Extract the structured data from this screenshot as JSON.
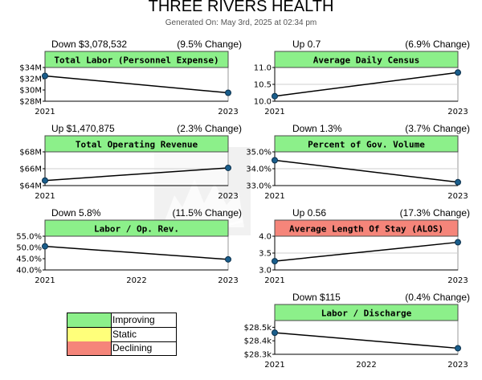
{
  "header": {
    "title": "THREE RIVERS HEALTH",
    "subtitle": "Generated On: May 3rd, 2025 at 02:34 pm"
  },
  "colors": {
    "improving": "#8cf08a",
    "static": "#ffff7a",
    "declining": "#f5857a",
    "line": "#000000",
    "point": "#1a5e8c"
  },
  "legend": [
    {
      "label": "Improving",
      "color": "#8cf08a"
    },
    {
      "label": "Static",
      "color": "#ffff7a"
    },
    {
      "label": "Declining",
      "color": "#f5857a"
    }
  ],
  "panels": [
    {
      "name": "total-labor",
      "summary": "Down $3,078,532",
      "change": "(9.5% Change)",
      "status": "improving",
      "xtick_labels": [
        "2021",
        "",
        "2023"
      ]
    },
    {
      "name": "average-daily-census",
      "summary": "Up 0.7",
      "change": "(6.9% Change)",
      "status": "improving",
      "xtick_labels": [
        "2021",
        "",
        "2023"
      ]
    },
    {
      "name": "total-operating-revenue",
      "summary": "Up $1,470,875",
      "change": "(2.3% Change)",
      "status": "improving",
      "xtick_labels": [
        "2021",
        "",
        "2023"
      ]
    },
    {
      "name": "percent-gov-volume",
      "summary": "Down 1.3%",
      "change": "(3.7% Change)",
      "status": "improving",
      "xtick_labels": [
        "2021",
        "",
        "2023"
      ]
    },
    {
      "name": "labor-op-rev",
      "summary": "Down 5.8%",
      "change": "(11.5% Change)",
      "status": "improving",
      "xtick_labels": [
        "2021",
        "2022",
        "2023"
      ]
    },
    {
      "name": "average-length-of-stay",
      "summary": "Up 0.56",
      "change": "(17.3% Change)",
      "status": "declining",
      "xtick_labels": [
        "2021",
        "",
        "2023"
      ]
    },
    {
      "name": "labor-discharge",
      "summary": "Down $115",
      "change": "(0.4% Change)",
      "status": "improving",
      "xtick_labels": [
        "2021",
        "2022",
        "2023"
      ]
    }
  ],
  "chart_data": [
    {
      "type": "line",
      "title": "Total Labor (Personnel Expense)",
      "x": [
        "2021",
        "2023"
      ],
      "values": [
        32.5,
        29.5
      ],
      "ylim": [
        28,
        34
      ],
      "yticks": [
        28,
        30,
        32,
        34
      ],
      "ytick_labels": [
        "$28M",
        "$30M",
        "$32M",
        "$34M"
      ],
      "grid": false
    },
    {
      "type": "line",
      "title": "Average Daily Census",
      "x": [
        "2021",
        "2023"
      ],
      "values": [
        10.15,
        10.85
      ],
      "ylim": [
        10.0,
        11.0
      ],
      "yticks": [
        10.0,
        10.5,
        11.0
      ],
      "ytick_labels": [
        "10.0",
        "10.5",
        "11.0"
      ],
      "grid": true
    },
    {
      "type": "line",
      "title": "Total Operating Revenue",
      "x": [
        "2021",
        "2023"
      ],
      "values": [
        64.6,
        66.1
      ],
      "ylim": [
        64,
        68
      ],
      "yticks": [
        64,
        66,
        68
      ],
      "ytick_labels": [
        "$64M",
        "$66M",
        "$68M"
      ],
      "grid": true
    },
    {
      "type": "line",
      "title": "Percent of Gov. Volume",
      "x": [
        "2021",
        "2023"
      ],
      "values": [
        34.5,
        33.2
      ],
      "ylim": [
        33.0,
        35.0
      ],
      "yticks": [
        33.0,
        34.0,
        35.0
      ],
      "ytick_labels": [
        "33.0%",
        "34.0%",
        "35.0%"
      ],
      "grid": true
    },
    {
      "type": "line",
      "title": "Labor / Op. Rev.",
      "x": [
        "2021",
        "2023"
      ],
      "values": [
        50.5,
        44.7
      ],
      "ylim": [
        40.0,
        55.0
      ],
      "yticks": [
        40.0,
        45.0,
        50.0,
        55.0
      ],
      "ytick_labels": [
        "40.0%",
        "45.0%",
        "50.0%",
        "55.0%"
      ],
      "grid": false
    },
    {
      "type": "line",
      "title": "Average Length Of Stay (ALOS)",
      "x": [
        "2021",
        "2023"
      ],
      "values": [
        3.26,
        3.82
      ],
      "ylim": [
        3.0,
        4.0
      ],
      "yticks": [
        3.0,
        3.5,
        4.0
      ],
      "ytick_labels": [
        "3.0",
        "3.5",
        "4.0"
      ],
      "grid": true
    },
    {
      "type": "line",
      "title": "Labor / Discharge",
      "x": [
        "2021",
        "2023"
      ],
      "values": [
        28460,
        28345
      ],
      "ylim": [
        28300,
        28550
      ],
      "yticks": [
        28300,
        28400,
        28500
      ],
      "ytick_labels": [
        "$28.3k",
        "$28.4k",
        "$28.5k"
      ],
      "grid": false
    }
  ]
}
